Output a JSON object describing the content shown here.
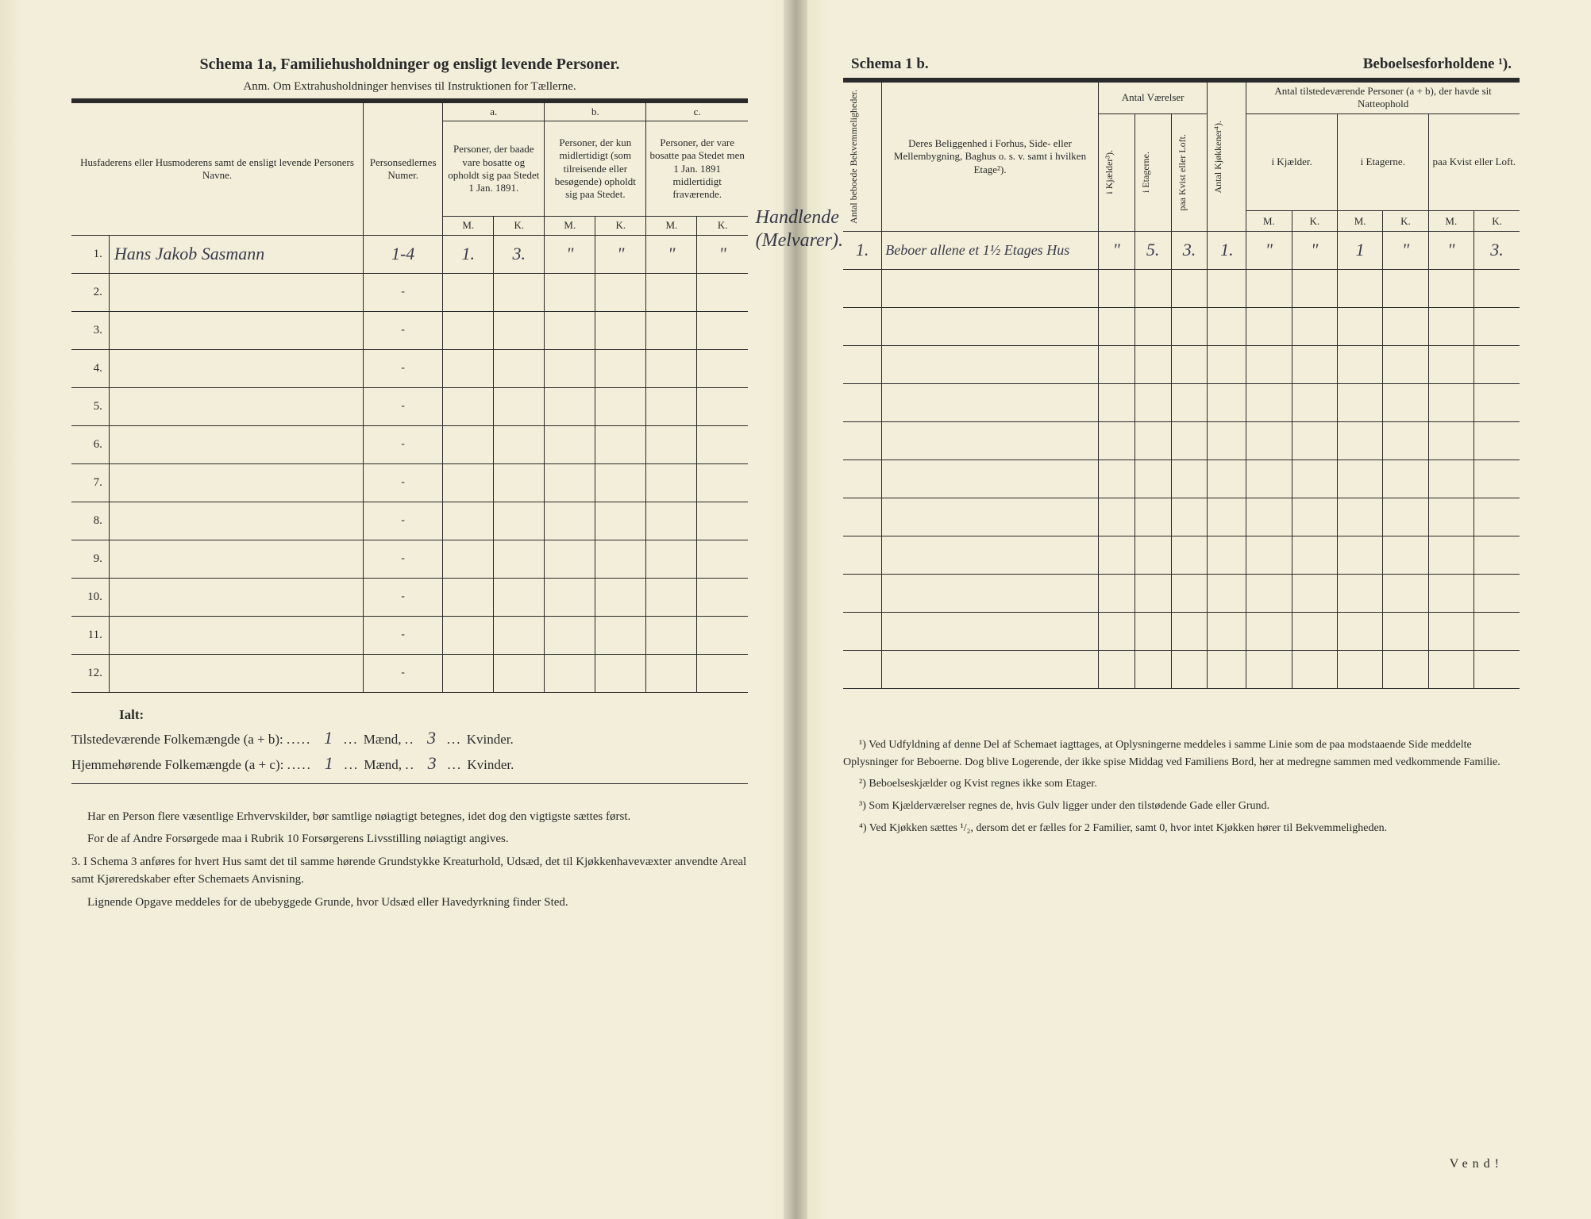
{
  "page_bg": "#f2eed9",
  "ink": "#2a2a2a",
  "handwrite_color": "#3a3a4a",
  "left": {
    "title": "Schema 1a,   Familiehusholdninger og ensligt levende Personer.",
    "subtitle": "Anm.  Om Extrahusholdninger henvises til Instruktionen for Tællerne.",
    "col_name": "Husfaderens eller Husmoderens samt de ensligt levende Personers Navne.",
    "col_person": "Personsedlernes Numer.",
    "group_a_letter": "a.",
    "col_a": "Personer, der baade vare bosatte og opholdt sig paa Stedet 1 Jan. 1891.",
    "group_b_letter": "b.",
    "col_b": "Personer, der kun midlertidigt (som tilreisende eller besøgende) opholdt sig paa Stedet.",
    "group_c_letter": "c.",
    "col_c": "Personer, der vare bosatte paa Stedet men 1 Jan. 1891 midlertidigt fraværende.",
    "mk_m": "M.",
    "mk_k": "K.",
    "rows": [
      {
        "n": "1.",
        "name": "Hans Jakob Sasmann",
        "person": "1-4",
        "a_m": "1.",
        "a_k": "3.",
        "b_m": "\"",
        "b_k": "\"",
        "c_m": "\"",
        "c_k": "\""
      },
      {
        "n": "2.",
        "name": "",
        "person": "-",
        "a_m": "",
        "a_k": "",
        "b_m": "",
        "b_k": "",
        "c_m": "",
        "c_k": ""
      },
      {
        "n": "3.",
        "name": "",
        "person": "-",
        "a_m": "",
        "a_k": "",
        "b_m": "",
        "b_k": "",
        "c_m": "",
        "c_k": ""
      },
      {
        "n": "4.",
        "name": "",
        "person": "-",
        "a_m": "",
        "a_k": "",
        "b_m": "",
        "b_k": "",
        "c_m": "",
        "c_k": ""
      },
      {
        "n": "5.",
        "name": "",
        "person": "-",
        "a_m": "",
        "a_k": "",
        "b_m": "",
        "b_k": "",
        "c_m": "",
        "c_k": ""
      },
      {
        "n": "6.",
        "name": "",
        "person": "-",
        "a_m": "",
        "a_k": "",
        "b_m": "",
        "b_k": "",
        "c_m": "",
        "c_k": ""
      },
      {
        "n": "7.",
        "name": "",
        "person": "-",
        "a_m": "",
        "a_k": "",
        "b_m": "",
        "b_k": "",
        "c_m": "",
        "c_k": ""
      },
      {
        "n": "8.",
        "name": "",
        "person": "-",
        "a_m": "",
        "a_k": "",
        "b_m": "",
        "b_k": "",
        "c_m": "",
        "c_k": ""
      },
      {
        "n": "9.",
        "name": "",
        "person": "-",
        "a_m": "",
        "a_k": "",
        "b_m": "",
        "b_k": "",
        "c_m": "",
        "c_k": ""
      },
      {
        "n": "10.",
        "name": "",
        "person": "-",
        "a_m": "",
        "a_k": "",
        "b_m": "",
        "b_k": "",
        "c_m": "",
        "c_k": ""
      },
      {
        "n": "11.",
        "name": "",
        "person": "-",
        "a_m": "",
        "a_k": "",
        "b_m": "",
        "b_k": "",
        "c_m": "",
        "c_k": ""
      },
      {
        "n": "12.",
        "name": "",
        "person": "-",
        "a_m": "",
        "a_k": "",
        "b_m": "",
        "b_k": "",
        "c_m": "",
        "c_k": ""
      }
    ],
    "margin_note_1": "Handlende",
    "margin_note_2": "(Melvarer).",
    "ialt": "Ialt:",
    "tot1_label": "Tilstedeværende Folkemængde (a + b):",
    "tot1_m": "1",
    "tot1_mw": "Mænd,",
    "tot1_k": "3",
    "tot1_kw": "Kvinder.",
    "tot2_label": "Hjemmehørende Folkemængde (a + c):",
    "tot2_m": "1",
    "tot2_k": "3",
    "notes_p1": "Har en Person flere væsentlige Erhvervskilder, bør samtlige nøiagtigt betegnes, idet dog den vigtigste sættes først.",
    "notes_p2": "For de af Andre Forsørgede maa i Rubrik 10 Forsørgerens Livsstilling nøiagtigt angives.",
    "notes_p3": "3. I Schema 3 anføres for hvert Hus samt det til samme hørende Grundstykke Kreaturhold, Udsæd, det til Kjøkkenhavevæxter anvendte Areal samt Kjøreredskaber efter Schemaets Anvisning.",
    "notes_p4": "Lignende Opgave meddeles for de ubebyggede Grunde, hvor Udsæd eller Havedyrkning finder Sted."
  },
  "right": {
    "title_a": "Schema 1 b.",
    "title_b": "Beboelsesforholdene ¹).",
    "h_antal_bekv": "Antal beboede Bekvemmeligheder.",
    "h_belig": "Deres Beliggenhed i Forhus, Side- eller Mellembygning, Baghus o. s. v. samt i hvilken Etage²).",
    "h_vaer": "Antal Værelser",
    "h_kj": "i Kjælder³).",
    "h_et": "i Etagerne.",
    "h_kv": "paa Kvist eller Loft.",
    "h_kjok": "Antal Kjøkkener⁴).",
    "h_pers": "Antal tilstedeværende Personer (a + b), der havde sit Natteophold",
    "h_pers_kj": "i Kjælder.",
    "h_pers_et": "i Etagerne.",
    "h_pers_kv": "paa Kvist eller Loft.",
    "mk_m": "M.",
    "mk_k": "K.",
    "row1": {
      "bekv": "1.",
      "belig": "Beboer allene et 1½ Etages Hus",
      "kj": "\"",
      "et": "5.",
      "kv": "3.",
      "kjok": "1.",
      "pk_m": "\"",
      "pk_k": "\"",
      "pe_m": "1",
      "pe_k": "\"",
      "pv_m": "\"",
      "pv_k": "3."
    },
    "fn1": "¹) Ved Udfyldning af denne Del af Schemaet iagttages, at Oplysningerne meddeles i samme Linie som de paa modstaaende Side meddelte Oplysninger for Beboerne. Dog blive Logerende, der ikke spise Middag ved Familiens Bord, her at medregne sammen med vedkommende Familie.",
    "fn2": "²) Beboelseskjælder og Kvist regnes ikke som Etager.",
    "fn3": "³) Som Kjælderværelser regnes de, hvis Gulv ligger under den tilstødende Gade eller Grund.",
    "fn4": "⁴) Ved Kjøkken sættes ¹/₂, dersom det er fælles for 2 Familier, samt 0, hvor intet Kjøkken hører til Bekvemmeligheden.",
    "vend": "Vend!"
  }
}
